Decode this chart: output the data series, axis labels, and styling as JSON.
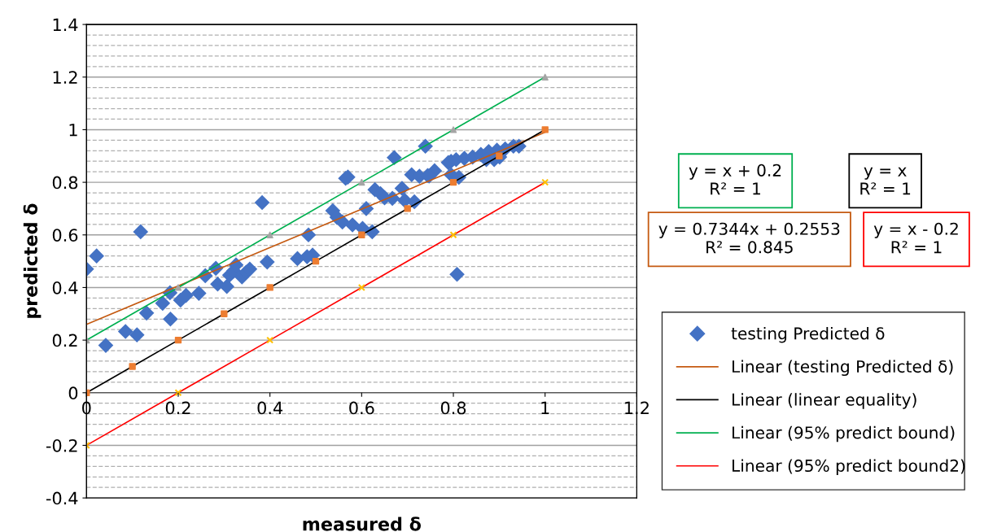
{
  "chart_data": {
    "type": "scatter",
    "xlabel": "measured δ",
    "ylabel": "predicted δ",
    "xlim": [
      0,
      1.2
    ],
    "xticks": [
      0,
      0.2,
      0.4,
      0.6,
      0.8,
      1,
      1.2
    ],
    "ylim": [
      -0.4,
      1.4
    ],
    "yticks": [
      -0.4,
      -0.2,
      0,
      0.2,
      0.4,
      0.6,
      0.8,
      1,
      1.2,
      1.4
    ],
    "grid": "y",
    "legend": "right",
    "marker": "diamond",
    "series": [
      {
        "name": "testing Predicted δ",
        "color": "#4472c4",
        "x": [
          0,
          0.022,
          0.118,
          0.042,
          0.085,
          0.11,
          0.131,
          0.166,
          0.183,
          0.182,
          0.205,
          0.217,
          0.245,
          0.259,
          0.282,
          0.286,
          0.306,
          0.312,
          0.321,
          0.326,
          0.339,
          0.348,
          0.356,
          0.394,
          0.383,
          0.46,
          0.481,
          0.493,
          0.484,
          0.537,
          0.546,
          0.558,
          0.58,
          0.602,
          0.623,
          0.61,
          0.629,
          0.641,
          0.65,
          0.667,
          0.688,
          0.694,
          0.715,
          0.57,
          0.565,
          0.671,
          0.739,
          0.709,
          0.726,
          0.744,
          0.759,
          0.747,
          0.795,
          0.789,
          0.806,
          0.824,
          0.842,
          0.86,
          0.877,
          0.895,
          0.913,
          0.931,
          0.943,
          0.872,
          0.889,
          0.901,
          0.795,
          0.812,
          0.808
        ],
        "values": [
          0.47,
          0.52,
          0.612,
          0.18,
          0.233,
          0.22,
          0.303,
          0.34,
          0.28,
          0.38,
          0.352,
          0.37,
          0.378,
          0.445,
          0.473,
          0.413,
          0.404,
          0.447,
          0.463,
          0.486,
          0.44,
          0.458,
          0.47,
          0.497,
          0.723,
          0.51,
          0.517,
          0.523,
          0.6,
          0.692,
          0.667,
          0.649,
          0.638,
          0.625,
          0.612,
          0.7,
          0.772,
          0.757,
          0.741,
          0.739,
          0.777,
          0.731,
          0.726,
          0.82,
          0.815,
          0.894,
          0.937,
          0.829,
          0.823,
          0.826,
          0.844,
          0.824,
          0.88,
          0.875,
          0.886,
          0.891,
          0.896,
          0.906,
          0.917,
          0.922,
          0.927,
          0.937,
          0.937,
          0.886,
          0.886,
          0.896,
          0.829,
          0.819,
          0.45
        ]
      },
      {
        "name": "Linear (testing Predicted δ)",
        "type": "line",
        "color": "#c55a11",
        "marker": "none",
        "x": [
          0,
          1
        ],
        "values": [
          0.26,
          0.99
        ]
      },
      {
        "name": "Linear (linear equality)",
        "type": "line",
        "color": "#000000",
        "marker": "square",
        "colors": [
          "#ed7d31",
          "#ed7d31",
          "#ed7d31",
          "#ed7d31",
          "#ed7d31",
          "#ed7d31",
          "#ed7d31",
          "#ed7d31",
          "#ed7d31",
          "#ed7d31",
          "#ed7d31"
        ],
        "x": [
          0,
          0.1,
          0.2,
          0.3,
          0.4,
          0.5,
          0.6,
          0.7,
          0.8,
          0.9,
          1
        ],
        "values": [
          0,
          0.1,
          0.2,
          0.3,
          0.4,
          0.5,
          0.6,
          0.7,
          0.8,
          0.9,
          1
        ]
      },
      {
        "name": "Linear (95% predict bound)",
        "type": "line",
        "color": "#00b050",
        "marker": "triangle",
        "colors": [
          "#a5a5a5",
          "#a5a5a5",
          "#a5a5a5",
          "#a5a5a5",
          "#a5a5a5",
          "#a5a5a5"
        ],
        "x": [
          0,
          0.2,
          0.4,
          0.6,
          0.8,
          1
        ],
        "values": [
          0.2,
          0.4,
          0.6,
          0.8,
          1,
          1.2
        ]
      },
      {
        "name": "Linear (95% predict bound2)",
        "type": "line",
        "color": "#ff0000",
        "marker": "cross",
        "colors": [
          "#ffc000",
          "#ffc000",
          "#ffc000",
          "#ffc000",
          "#ffc000",
          "#ffc000"
        ],
        "x": [
          0,
          0.2,
          0.4,
          0.6,
          0.8,
          1
        ],
        "values": [
          -0.2,
          0,
          0.2,
          0.4,
          0.6,
          0.8
        ]
      }
    ],
    "annotations": [
      "y = 0.7344x + 0.2553\nR² = 0.845",
      "y = x\nR² = 1",
      "y = x + 0.2\nR² = 1",
      "y = x - 0.2\nR² = 1"
    ]
  }
}
